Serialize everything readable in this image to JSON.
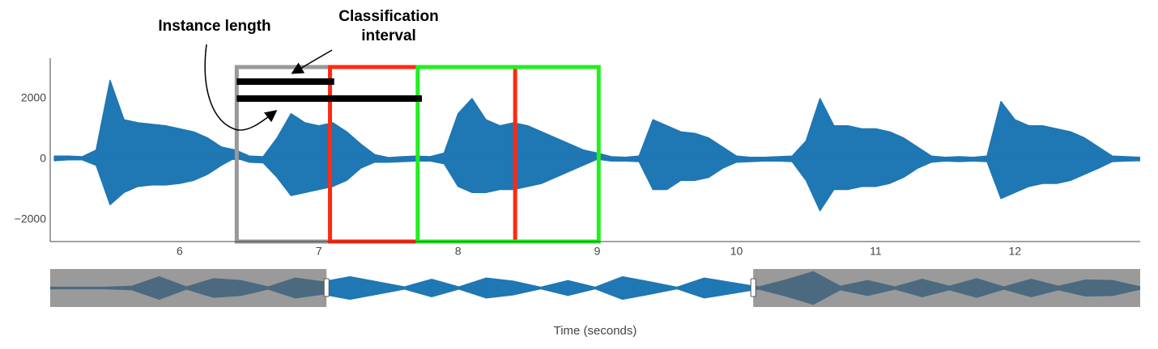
{
  "chart_data": {
    "type": "waveform",
    "x_label": "Time (seconds)",
    "color": "#1f77b4",
    "xlim": [
      5.07,
      12.9
    ],
    "ylim": [
      -2720,
      3333
    ],
    "xticks": [
      6,
      7,
      8,
      9,
      10,
      11,
      12
    ],
    "yticks": [
      {
        "value": -2000,
        "label": "−2000"
      },
      0,
      2000
    ],
    "x": [
      5.1,
      5.2,
      5.3,
      5.4,
      5.5,
      5.6,
      5.7,
      5.8,
      5.9,
      6.0,
      6.1,
      6.2,
      6.3,
      6.4,
      6.5,
      6.6,
      6.7,
      6.8,
      6.9,
      7.0,
      7.1,
      7.2,
      7.3,
      7.4,
      7.5,
      7.6,
      7.7,
      7.8,
      7.9,
      8.0,
      8.1,
      8.2,
      8.3,
      8.4,
      8.5,
      8.6,
      8.7,
      8.8,
      8.9,
      9.0,
      9.1,
      9.2,
      9.3,
      9.4,
      9.5,
      9.6,
      9.7,
      9.8,
      9.9,
      10.0,
      10.1,
      10.2,
      10.3,
      10.4,
      10.5,
      10.6,
      10.7,
      10.8,
      10.9,
      11.0,
      11.1,
      11.2,
      11.3,
      11.4,
      11.5,
      11.6,
      11.7,
      11.8,
      11.9,
      12.0,
      12.1,
      12.2,
      12.3,
      12.4,
      12.5,
      12.6,
      12.7,
      12.8,
      12.9
    ],
    "upper": [
      100,
      100,
      80,
      300,
      2600,
      1300,
      1200,
      1150,
      1100,
      1000,
      900,
      700,
      400,
      300,
      100,
      80,
      700,
      1500,
      1200,
      1100,
      1200,
      900,
      500,
      150,
      50,
      80,
      100,
      80,
      200,
      1500,
      2000,
      1300,
      1100,
      1200,
      1100,
      900,
      700,
      500,
      300,
      200,
      80,
      60,
      100,
      1300,
      1100,
      900,
      850,
      700,
      400,
      100,
      60,
      60,
      80,
      100,
      600,
      2000,
      1100,
      1100,
      1000,
      1000,
      900,
      700,
      400,
      100,
      60,
      80,
      60,
      100,
      1900,
      1300,
      1100,
      1100,
      1000,
      900,
      700,
      400,
      100,
      80,
      60
    ],
    "lower": [
      -50,
      -20,
      -20,
      -200,
      -1500,
      -1100,
      -900,
      -850,
      -850,
      -800,
      -700,
      -500,
      -200,
      50,
      -100,
      -120,
      -600,
      -1200,
      -1100,
      -1000,
      -900,
      -700,
      -300,
      -100,
      -100,
      -80,
      -60,
      -60,
      -150,
      -900,
      -1100,
      -1100,
      -1000,
      -1000,
      -900,
      -800,
      -600,
      -400,
      -200,
      0,
      -60,
      -60,
      -80,
      -1000,
      -1000,
      -700,
      -700,
      -600,
      -300,
      -100,
      -80,
      -60,
      -60,
      -80,
      -700,
      -1700,
      -1000,
      -1000,
      -900,
      -900,
      -800,
      -600,
      -300,
      -100,
      -60,
      -80,
      -60,
      -80,
      -1300,
      -1100,
      -900,
      -800,
      -800,
      -700,
      -500,
      -300,
      -80,
      -60,
      -50
    ],
    "windows": [
      {
        "x0": 6.41,
        "x1": 7.08,
        "y1": 3040,
        "color": "#999999"
      },
      {
        "x0": 7.08,
        "x1": 8.41,
        "y1": 3040,
        "color": "#ff2a12"
      },
      {
        "x0": 7.71,
        "x1": 9.01,
        "y1": 3040,
        "color": "#22ee22"
      }
    ],
    "spans": [
      {
        "x0": 6.41,
        "x1": 7.11,
        "y": 2560
      },
      {
        "x0": 6.41,
        "x1": 7.74,
        "y": 2000
      }
    ],
    "annotations": [
      "Instance length",
      "Classification interval"
    ],
    "range_slider": {
      "xlim": [
        0,
        20
      ],
      "ylim": [
        -3000,
        3000
      ],
      "selected": [
        5.07,
        12.9
      ],
      "x": [
        0,
        0.5,
        1,
        1.5,
        2,
        2.5,
        3,
        3.5,
        4,
        4.5,
        5,
        5.5,
        6,
        6.5,
        7,
        7.5,
        8,
        8.5,
        9,
        9.5,
        10,
        10.5,
        11,
        11.5,
        12,
        12.5,
        13,
        13.5,
        14,
        14.5,
        15,
        15.5,
        16,
        16.5,
        17,
        17.5,
        18,
        18.5,
        19,
        19.5,
        20
      ],
      "amplitude": [
        150,
        150,
        150,
        300,
        1800,
        200,
        1500,
        1200,
        200,
        1600,
        1000,
        1800,
        1000,
        200,
        1400,
        200,
        1600,
        1100,
        150,
        1200,
        150,
        1800,
        1000,
        150,
        1600,
        900,
        200,
        1300,
        2600,
        300,
        1200,
        200,
        1400,
        300,
        1500,
        200,
        1400,
        300,
        1300,
        1200,
        200
      ]
    }
  }
}
